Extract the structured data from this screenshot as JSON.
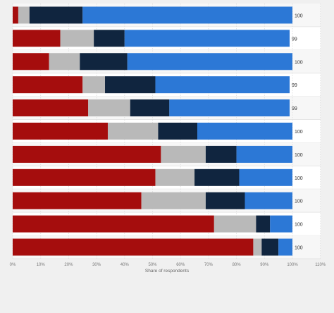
{
  "chart_data": {
    "type": "bar",
    "orientation": "horizontal",
    "stacked": true,
    "title": "",
    "xlabel": "Share of respondents",
    "ylabel": "",
    "xlim": [
      0,
      110
    ],
    "x_ticks": [
      "0%",
      "10%",
      "20%",
      "30%",
      "40%",
      "50%",
      "60%",
      "70%",
      "80%",
      "90%",
      "100%",
      "110%"
    ],
    "grid": true,
    "legend": "none",
    "categories": [
      "",
      "",
      "",
      "",
      "",
      "",
      "",
      "",
      "",
      "",
      ""
    ],
    "totals": [
      "100",
      "99",
      "100",
      "99",
      "99",
      "100",
      "100",
      "100",
      "100",
      "100",
      "100"
    ],
    "colors": [
      "#a50d0d",
      "#b9b9b9",
      "#10253f",
      "#2c78d6"
    ],
    "series": [
      {
        "values": [
          2,
          17,
          13,
          25,
          27,
          34,
          53,
          51,
          46,
          72,
          86
        ]
      },
      {
        "values": [
          4,
          12,
          11,
          8,
          15,
          18,
          16,
          14,
          23,
          15,
          3
        ]
      },
      {
        "values": [
          19,
          11,
          17,
          18,
          14,
          14,
          11,
          16,
          14,
          5,
          6
        ]
      },
      {
        "values": [
          75,
          59,
          59,
          48,
          43,
          34,
          20,
          19,
          17,
          8,
          5
        ]
      }
    ]
  }
}
